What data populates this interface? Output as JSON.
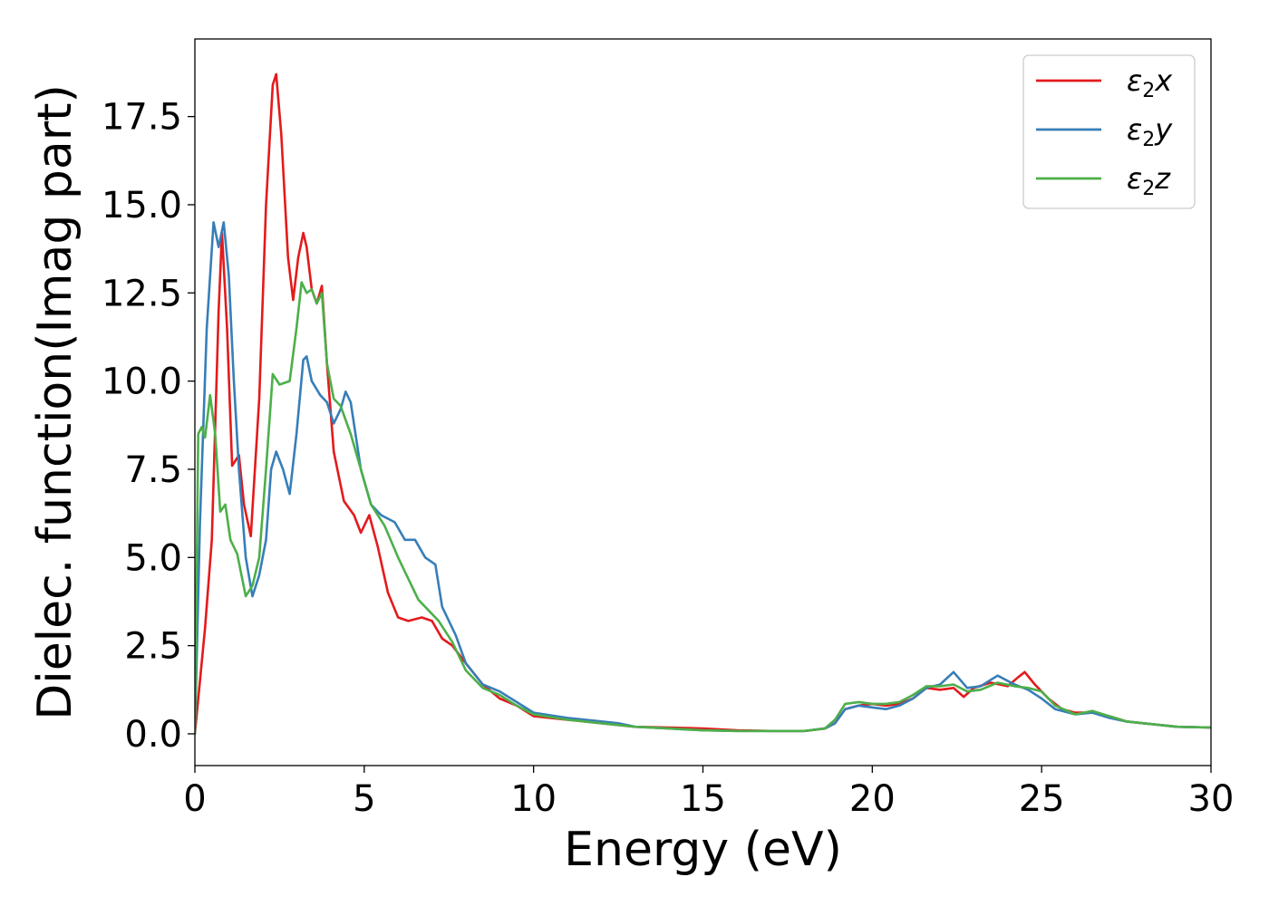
{
  "chart_data": {
    "type": "line",
    "xlabel": "Energy (eV)",
    "ylabel": "Dielec. function(Imag part)",
    "xlim": [
      0,
      30
    ],
    "ylim": [
      -0.9,
      19.7
    ],
    "xticks": [
      0,
      5,
      10,
      15,
      20,
      25,
      30
    ],
    "xtick_labels": [
      "0",
      "5",
      "10",
      "15",
      "20",
      "25",
      "30"
    ],
    "yticks": [
      0.0,
      2.5,
      5.0,
      7.5,
      10.0,
      12.5,
      15.0,
      17.5
    ],
    "ytick_labels": [
      "0.0",
      "2.5",
      "5.0",
      "7.5",
      "10.0",
      "12.5",
      "15.0",
      "17.5"
    ],
    "grid": false,
    "legend_position": "top-right",
    "series": [
      {
        "name": "ε2x",
        "label_main": "ε",
        "label_sub": "2",
        "label_tail": "x",
        "color": "#e41a1c",
        "points": [
          [
            0,
            0.0
          ],
          [
            0.3,
            3.0
          ],
          [
            0.5,
            5.5
          ],
          [
            0.7,
            12.0
          ],
          [
            0.8,
            14.2
          ],
          [
            0.95,
            11.5
          ],
          [
            1.1,
            7.6
          ],
          [
            1.3,
            7.9
          ],
          [
            1.45,
            6.5
          ],
          [
            1.65,
            5.6
          ],
          [
            1.9,
            9.5
          ],
          [
            2.1,
            15.0
          ],
          [
            2.3,
            18.4
          ],
          [
            2.4,
            18.7
          ],
          [
            2.55,
            17.0
          ],
          [
            2.75,
            13.5
          ],
          [
            2.9,
            12.3
          ],
          [
            3.05,
            13.5
          ],
          [
            3.2,
            14.2
          ],
          [
            3.3,
            13.8
          ],
          [
            3.45,
            12.6
          ],
          [
            3.6,
            12.2
          ],
          [
            3.75,
            12.7
          ],
          [
            3.9,
            10.5
          ],
          [
            4.1,
            8.0
          ],
          [
            4.4,
            6.6
          ],
          [
            4.7,
            6.2
          ],
          [
            4.9,
            5.7
          ],
          [
            5.15,
            6.2
          ],
          [
            5.4,
            5.3
          ],
          [
            5.7,
            4.0
          ],
          [
            6.0,
            3.3
          ],
          [
            6.3,
            3.2
          ],
          [
            6.7,
            3.3
          ],
          [
            7.0,
            3.2
          ],
          [
            7.3,
            2.7
          ],
          [
            7.6,
            2.5
          ],
          [
            8.0,
            2.0
          ],
          [
            8.5,
            1.4
          ],
          [
            9.0,
            1.0
          ],
          [
            9.5,
            0.8
          ],
          [
            10.0,
            0.5
          ],
          [
            11.0,
            0.4
          ],
          [
            12.0,
            0.3
          ],
          [
            13.0,
            0.2
          ],
          [
            14.0,
            0.18
          ],
          [
            15.0,
            0.15
          ],
          [
            16.0,
            0.1
          ],
          [
            17.0,
            0.08
          ],
          [
            18.0,
            0.08
          ],
          [
            18.6,
            0.15
          ],
          [
            18.9,
            0.3
          ],
          [
            19.2,
            0.7
          ],
          [
            19.6,
            0.8
          ],
          [
            20.0,
            0.85
          ],
          [
            20.4,
            0.8
          ],
          [
            20.8,
            0.85
          ],
          [
            21.2,
            1.0
          ],
          [
            21.6,
            1.3
          ],
          [
            22.0,
            1.25
          ],
          [
            22.4,
            1.3
          ],
          [
            22.7,
            1.05
          ],
          [
            23.0,
            1.3
          ],
          [
            23.5,
            1.45
          ],
          [
            24.0,
            1.35
          ],
          [
            24.3,
            1.6
          ],
          [
            24.5,
            1.75
          ],
          [
            24.8,
            1.4
          ],
          [
            25.2,
            1.0
          ],
          [
            25.6,
            0.7
          ],
          [
            26.0,
            0.6
          ],
          [
            26.5,
            0.6
          ],
          [
            27.0,
            0.5
          ],
          [
            27.5,
            0.35
          ],
          [
            28.0,
            0.3
          ],
          [
            29.0,
            0.2
          ],
          [
            30.0,
            0.18
          ]
        ]
      },
      {
        "name": "ε2y",
        "label_main": "ε",
        "label_sub": "2",
        "label_tail": "y",
        "color": "#377eb8",
        "points": [
          [
            0,
            0.0
          ],
          [
            0.15,
            6.0
          ],
          [
            0.35,
            11.5
          ],
          [
            0.55,
            14.5
          ],
          [
            0.7,
            13.8
          ],
          [
            0.85,
            14.5
          ],
          [
            1.0,
            13.0
          ],
          [
            1.15,
            10.0
          ],
          [
            1.3,
            7.5
          ],
          [
            1.5,
            5.0
          ],
          [
            1.7,
            3.9
          ],
          [
            1.9,
            4.5
          ],
          [
            2.1,
            5.5
          ],
          [
            2.25,
            7.5
          ],
          [
            2.4,
            8.0
          ],
          [
            2.6,
            7.5
          ],
          [
            2.8,
            6.8
          ],
          [
            3.0,
            8.5
          ],
          [
            3.2,
            10.6
          ],
          [
            3.3,
            10.7
          ],
          [
            3.45,
            10.0
          ],
          [
            3.7,
            9.6
          ],
          [
            3.9,
            9.4
          ],
          [
            4.1,
            8.8
          ],
          [
            4.3,
            9.2
          ],
          [
            4.45,
            9.7
          ],
          [
            4.6,
            9.4
          ],
          [
            4.9,
            7.5
          ],
          [
            5.2,
            6.5
          ],
          [
            5.5,
            6.2
          ],
          [
            5.9,
            6.0
          ],
          [
            6.2,
            5.5
          ],
          [
            6.5,
            5.5
          ],
          [
            6.8,
            5.0
          ],
          [
            7.1,
            4.8
          ],
          [
            7.3,
            3.6
          ],
          [
            7.7,
            2.8
          ],
          [
            8.0,
            2.0
          ],
          [
            8.5,
            1.4
          ],
          [
            9.0,
            1.2
          ],
          [
            9.5,
            0.9
          ],
          [
            10.0,
            0.6
          ],
          [
            11.0,
            0.45
          ],
          [
            12.0,
            0.35
          ],
          [
            12.5,
            0.3
          ],
          [
            13.0,
            0.2
          ],
          [
            14.0,
            0.15
          ],
          [
            15.0,
            0.1
          ],
          [
            16.0,
            0.08
          ],
          [
            17.0,
            0.08
          ],
          [
            18.0,
            0.08
          ],
          [
            18.6,
            0.15
          ],
          [
            18.9,
            0.3
          ],
          [
            19.2,
            0.7
          ],
          [
            19.6,
            0.8
          ],
          [
            20.0,
            0.75
          ],
          [
            20.4,
            0.7
          ],
          [
            20.8,
            0.8
          ],
          [
            21.2,
            1.0
          ],
          [
            21.6,
            1.3
          ],
          [
            22.0,
            1.4
          ],
          [
            22.4,
            1.75
          ],
          [
            22.8,
            1.3
          ],
          [
            23.2,
            1.35
          ],
          [
            23.7,
            1.65
          ],
          [
            24.2,
            1.4
          ],
          [
            24.6,
            1.25
          ],
          [
            25.0,
            1.0
          ],
          [
            25.4,
            0.7
          ],
          [
            26.0,
            0.55
          ],
          [
            26.5,
            0.6
          ],
          [
            27.0,
            0.45
          ],
          [
            27.5,
            0.35
          ],
          [
            28.0,
            0.3
          ],
          [
            29.0,
            0.2
          ],
          [
            30.0,
            0.18
          ]
        ]
      },
      {
        "name": "ε2z",
        "label_main": "ε",
        "label_sub": "2",
        "label_tail": "z",
        "color": "#4daf4a",
        "points": [
          [
            0,
            0.0
          ],
          [
            0.1,
            8.5
          ],
          [
            0.2,
            8.7
          ],
          [
            0.3,
            8.4
          ],
          [
            0.45,
            9.6
          ],
          [
            0.6,
            8.5
          ],
          [
            0.75,
            6.3
          ],
          [
            0.9,
            6.5
          ],
          [
            1.05,
            5.5
          ],
          [
            1.25,
            5.1
          ],
          [
            1.5,
            3.9
          ],
          [
            1.7,
            4.2
          ],
          [
            1.9,
            5.0
          ],
          [
            2.1,
            7.5
          ],
          [
            2.3,
            10.2
          ],
          [
            2.5,
            9.9
          ],
          [
            2.8,
            10.0
          ],
          [
            3.0,
            11.5
          ],
          [
            3.15,
            12.8
          ],
          [
            3.3,
            12.5
          ],
          [
            3.45,
            12.6
          ],
          [
            3.6,
            12.2
          ],
          [
            3.75,
            12.5
          ],
          [
            3.9,
            10.5
          ],
          [
            4.1,
            9.5
          ],
          [
            4.3,
            9.3
          ],
          [
            4.6,
            8.5
          ],
          [
            4.9,
            7.5
          ],
          [
            5.2,
            6.5
          ],
          [
            5.6,
            5.9
          ],
          [
            6.0,
            5.0
          ],
          [
            6.3,
            4.4
          ],
          [
            6.6,
            3.8
          ],
          [
            6.9,
            3.5
          ],
          [
            7.2,
            3.2
          ],
          [
            7.6,
            2.6
          ],
          [
            8.0,
            1.8
          ],
          [
            8.5,
            1.3
          ],
          [
            9.0,
            1.1
          ],
          [
            9.5,
            0.8
          ],
          [
            10.0,
            0.55
          ],
          [
            11.0,
            0.4
          ],
          [
            12.0,
            0.3
          ],
          [
            13.0,
            0.2
          ],
          [
            14.0,
            0.15
          ],
          [
            15.0,
            0.1
          ],
          [
            16.0,
            0.08
          ],
          [
            17.0,
            0.08
          ],
          [
            18.0,
            0.08
          ],
          [
            18.6,
            0.15
          ],
          [
            18.9,
            0.4
          ],
          [
            19.2,
            0.85
          ],
          [
            19.6,
            0.9
          ],
          [
            20.0,
            0.85
          ],
          [
            20.4,
            0.85
          ],
          [
            20.8,
            0.9
          ],
          [
            21.2,
            1.1
          ],
          [
            21.6,
            1.35
          ],
          [
            22.0,
            1.35
          ],
          [
            22.4,
            1.4
          ],
          [
            22.8,
            1.2
          ],
          [
            23.2,
            1.25
          ],
          [
            23.7,
            1.45
          ],
          [
            24.2,
            1.35
          ],
          [
            24.6,
            1.3
          ],
          [
            25.0,
            1.2
          ],
          [
            25.4,
            0.8
          ],
          [
            26.0,
            0.55
          ],
          [
            26.5,
            0.65
          ],
          [
            27.0,
            0.5
          ],
          [
            27.5,
            0.35
          ],
          [
            28.0,
            0.3
          ],
          [
            29.0,
            0.2
          ],
          [
            30.0,
            0.18
          ]
        ]
      }
    ]
  }
}
